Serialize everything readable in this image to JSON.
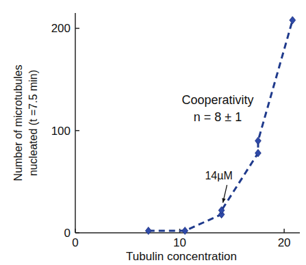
{
  "chart_data": {
    "type": "scatter",
    "xlabel": "Tubulin concentration",
    "ylabel": [
      "Number of microtubules",
      "nucleated (t =7.5 min)"
    ],
    "xlim": [
      0,
      21.5
    ],
    "ylim": [
      0,
      215
    ],
    "xticks": [
      0,
      10,
      20
    ],
    "yticks": [
      0,
      100,
      200
    ],
    "grid": false,
    "series": [
      {
        "color": "#2f4aa8",
        "marker": "diamond",
        "line_style": "dashed",
        "x": [
          7,
          10.5,
          14,
          14,
          17.5,
          17.5,
          20.8
        ],
        "values": [
          2,
          2,
          18,
          22,
          78,
          90,
          208
        ]
      }
    ],
    "annotations": [
      {
        "text": "Cooperativity"
      },
      {
        "text": "n = 8 ± 1"
      },
      {
        "text": "14µM",
        "x": 14,
        "y": 24
      }
    ]
  }
}
